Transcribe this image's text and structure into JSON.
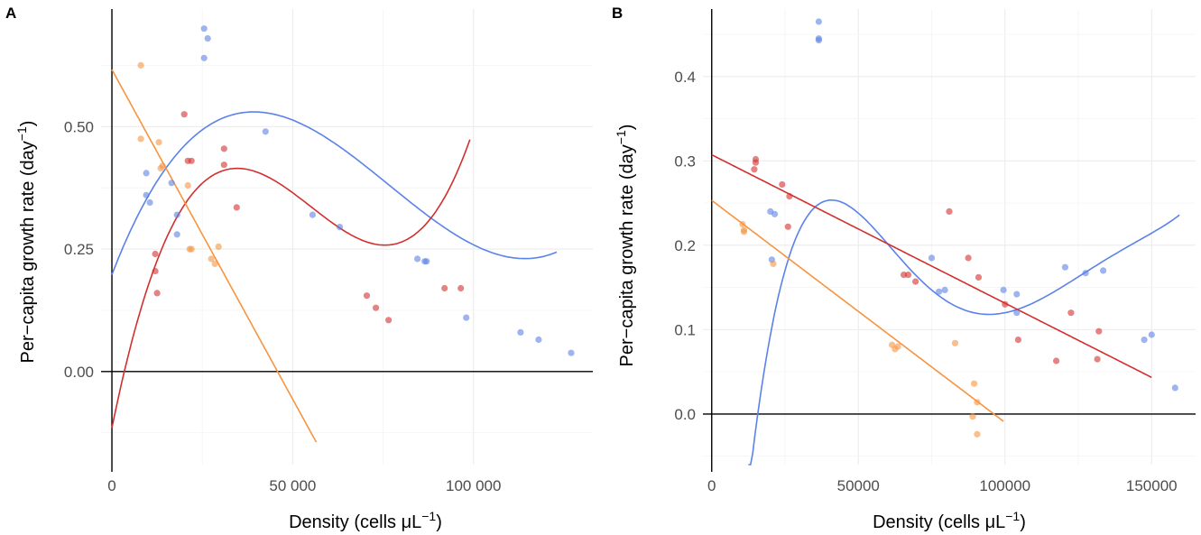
{
  "chart_data": [
    {
      "type": "scatter",
      "panel_label": "A",
      "xlabel": "Density (cells μL",
      "xlabel_sup": "−1",
      "xlabel_tail": ")",
      "ylabel": "Per−capita growth rate (day",
      "ylabel_sup": "−1",
      "ylabel_tail": ")",
      "xlim": [
        -3000,
        133000
      ],
      "ylim": [
        -0.19,
        0.74
      ],
      "x_ticks": [
        0,
        50000,
        100000
      ],
      "x_tick_labels": [
        "0",
        "50 000",
        "100 000"
      ],
      "y_ticks": [
        0,
        0.25,
        0.5
      ],
      "y_tick_labels": [
        "0.00",
        "0.25",
        "0.50"
      ],
      "grid": true,
      "series": [
        {
          "color": "#5b82e8",
          "points": [
            [
              9500,
              0.36
            ],
            [
              10500,
              0.345
            ],
            [
              9500,
              0.405
            ],
            [
              16500,
              0.385
            ],
            [
              18000,
              0.32
            ],
            [
              18000,
              0.28
            ],
            [
              25500,
              0.7
            ],
            [
              26500,
              0.68
            ],
            [
              25500,
              0.64
            ],
            [
              42500,
              0.49
            ],
            [
              55500,
              0.32
            ],
            [
              63000,
              0.295
            ],
            [
              84500,
              0.23
            ],
            [
              86500,
              0.225
            ],
            [
              87000,
              0.225
            ],
            [
              98000,
              0.11
            ],
            [
              113000,
              0.08
            ],
            [
              118000,
              0.065
            ],
            [
              127000,
              0.038
            ]
          ],
          "fit": {
            "type": "poly",
            "coef": [
              0.19789,
              1.9118e-05,
              -3.2733e-10,
              1.4223e-15
            ],
            "x_range": [
              0,
              123000
            ]
          }
        },
        {
          "color": "#d32f2f",
          "points": [
            [
              12000,
              0.24
            ],
            [
              12000,
              0.205
            ],
            [
              12500,
              0.16
            ],
            [
              20000,
              0.525
            ],
            [
              21000,
              0.43
            ],
            [
              22000,
              0.43
            ],
            [
              31000,
              0.455
            ],
            [
              31000,
              0.422
            ],
            [
              34500,
              0.335
            ],
            [
              70500,
              0.155
            ],
            [
              73000,
              0.13
            ],
            [
              76500,
              0.105
            ],
            [
              92000,
              0.17
            ],
            [
              96500,
              0.17
            ]
          ],
          "fit": {
            "type": "poly",
            "coef": [
              -0.11502,
              3.61e-05,
              -7.6e-10,
              4.6e-15
            ],
            "x_range": [
              0,
              99000
            ]
          }
        },
        {
          "color": "#f7943f",
          "points": [
            [
              8000,
              0.625
            ],
            [
              8000,
              0.475
            ],
            [
              13000,
              0.468
            ],
            [
              14000,
              0.42
            ],
            [
              13500,
              0.415
            ],
            [
              21000,
              0.38
            ],
            [
              21500,
              0.25
            ],
            [
              22000,
              0.25
            ],
            [
              27500,
              0.23
            ],
            [
              28500,
              0.22
            ],
            [
              29500,
              0.255
            ]
          ],
          "fit": {
            "type": "poly",
            "coef": [
              0.61633,
              -1.3456e-05
            ],
            "x_range": [
              0,
              56500
            ]
          }
        }
      ]
    },
    {
      "type": "scatter",
      "panel_label": "B",
      "xlabel": "Density (cells μL",
      "xlabel_sup": "−1",
      "xlabel_tail": ")",
      "ylabel": "Per−capita growth rate (day",
      "ylabel_sup": "−1",
      "ylabel_tail": ")",
      "xlim": [
        -3000,
        165000
      ],
      "ylim": [
        -0.06,
        0.48
      ],
      "x_ticks": [
        0,
        50000,
        100000,
        150000
      ],
      "x_tick_labels": [
        "0",
        "50000",
        "100000",
        "150000"
      ],
      "y_ticks": [
        0,
        0.1,
        0.2,
        0.3,
        0.4
      ],
      "y_tick_labels": [
        "0.0",
        "0.1",
        "0.2",
        "0.3",
        "0.4"
      ],
      "grid": true,
      "series": [
        {
          "color": "#5b82e8",
          "points": [
            [
              20000,
              0.24
            ],
            [
              21500,
              0.237
            ],
            [
              20500,
              0.183
            ],
            [
              36500,
              0.465
            ],
            [
              36500,
              0.445
            ],
            [
              36500,
              0.443
            ],
            [
              75000,
              0.185
            ],
            [
              77500,
              0.145
            ],
            [
              79500,
              0.147
            ],
            [
              99500,
              0.147
            ],
            [
              104000,
              0.142
            ],
            [
              104000,
              0.12
            ],
            [
              120500,
              0.174
            ],
            [
              127500,
              0.167
            ],
            [
              133500,
              0.17
            ],
            [
              147500,
              0.088
            ],
            [
              150000,
              0.094
            ],
            [
              158000,
              0.031
            ]
          ],
          "fit": {
            "type": "poly",
            "coef": [
              -0.65,
              6.07e-05,
              -1.45e-09,
              1.51e-14,
              -7.2e-20,
              1.3e-25
            ],
            "x_range": [
              12500,
              159500
            ]
          }
        },
        {
          "color": "#d32f2f",
          "points": [
            [
              14500,
              0.29
            ],
            [
              15000,
              0.302
            ],
            [
              15000,
              0.298
            ],
            [
              24000,
              0.272
            ],
            [
              26500,
              0.258
            ],
            [
              26000,
              0.222
            ],
            [
              65500,
              0.165
            ],
            [
              67000,
              0.165
            ],
            [
              69500,
              0.157
            ],
            [
              81000,
              0.24
            ],
            [
              87500,
              0.185
            ],
            [
              91000,
              0.162
            ],
            [
              100000,
              0.13
            ],
            [
              104500,
              0.088
            ],
            [
              117500,
              0.063
            ],
            [
              122500,
              0.12
            ],
            [
              131500,
              0.065
            ],
            [
              132000,
              0.098
            ]
          ],
          "fit": {
            "type": "poly",
            "coef": [
              0.30725,
              -1.7589e-06
            ],
            "x_range": [
              0,
              150000
            ]
          }
        },
        {
          "color": "#f7943f",
          "points": [
            [
              10500,
              0.225
            ],
            [
              11000,
              0.218
            ],
            [
              11000,
              0.216
            ],
            [
              21000,
              0.178
            ],
            [
              61500,
              0.082
            ],
            [
              62500,
              0.077
            ],
            [
              63500,
              0.08
            ],
            [
              83000,
              0.084
            ],
            [
              89000,
              -0.003
            ],
            [
              89500,
              0.036
            ],
            [
              90500,
              0.014
            ],
            [
              90500,
              -0.024
            ]
          ],
          "fit": {
            "type": "poly",
            "coef": [
              0.25322,
              -2.6322e-06
            ],
            "x_range": [
              0,
              99500
            ]
          }
        }
      ]
    }
  ]
}
